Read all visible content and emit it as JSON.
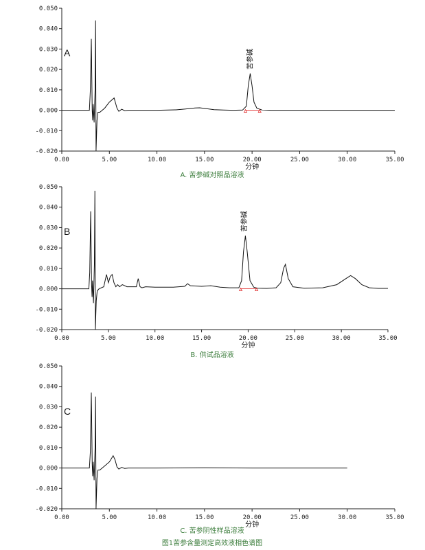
{
  "figure_title": "图1苦参含量测定高效液相色谱图",
  "chart_data": [
    {
      "type": "line",
      "panel": "A",
      "caption": "A.  苦参碱对照品溶液",
      "xlabel": "分钟",
      "ylabel": "",
      "xlim": [
        0,
        35
      ],
      "ylim": [
        -0.02,
        0.05
      ],
      "x_ticks": [
        "0.00",
        "5.00",
        "10.00",
        "15.00",
        "20.00",
        "25.00",
        "30.00",
        "35.00"
      ],
      "y_ticks": [
        "0.050",
        "0.040",
        "0.030",
        "0.020",
        "0.010",
        "0.000",
        "-0.010",
        "-0.020"
      ],
      "peak_label": {
        "text": "苦参碱",
        "x": 19.8,
        "y": 0.018
      },
      "integration_marks": [
        19.3,
        20.8
      ],
      "series": [
        {
          "x": [
            0,
            2.9,
            3.0,
            3.1,
            3.2,
            3.25,
            3.3,
            3.4,
            3.5,
            3.55,
            3.6,
            3.7,
            3.8,
            4.0,
            4.5,
            5.0,
            5.5,
            5.8,
            6.0,
            6.3,
            6.6,
            7.0,
            10,
            12,
            13,
            14,
            14.5,
            15,
            16,
            17,
            18,
            19,
            19.4,
            19.6,
            19.8,
            20.0,
            20.2,
            20.5,
            21,
            22,
            25,
            30,
            35
          ],
          "y": [
            0,
            0,
            0.01,
            0.035,
            0.0,
            -0.005,
            0.003,
            -0.006,
            0.01,
            0.044,
            -0.02,
            -0.005,
            -0.001,
            -0.001,
            0.001,
            0.004,
            0.006,
            0.001,
            -0.0005,
            0.0005,
            -0.0002,
            0,
            0,
            0.0002,
            0.0006,
            0.0011,
            0.0012,
            0.0009,
            0.0003,
            0.0001,
            0,
            0.0001,
            0.002,
            0.012,
            0.018,
            0.012,
            0.004,
            0.001,
            0.0002,
            0,
            0,
            0,
            0
          ]
        }
      ]
    },
    {
      "type": "line",
      "panel": "B",
      "caption": "B.  供试品溶液",
      "xlabel": "分钟",
      "ylabel": "",
      "xlim": [
        0,
        35
      ],
      "ylim": [
        -0.02,
        0.05
      ],
      "x_ticks": [
        "0.00",
        "5.00",
        "10.00",
        "15.00",
        "20.00",
        "25.00",
        "30.00",
        "35.00"
      ],
      "y_ticks": [
        "0.050",
        "0.040",
        "0.030",
        "0.020",
        "0.010",
        "0.000",
        "-0.010",
        "-0.020"
      ],
      "peak_label": {
        "text": "苦参碱",
        "x": 19.6,
        "y": 0.026
      },
      "integration_marks": [
        19.2,
        20.9
      ],
      "series": [
        {
          "x": [
            0,
            2.9,
            3.0,
            3.1,
            3.2,
            3.25,
            3.3,
            3.4,
            3.5,
            3.55,
            3.6,
            3.7,
            3.8,
            4.0,
            4.5,
            4.8,
            5.0,
            5.2,
            5.4,
            5.6,
            5.8,
            6.0,
            6.2,
            6.5,
            7.0,
            8.0,
            8.2,
            8.4,
            8.6,
            9.0,
            10,
            12,
            13.2,
            13.5,
            13.8,
            15,
            16,
            17,
            18,
            19,
            19.3,
            19.5,
            19.7,
            19.9,
            20.2,
            20.6,
            21,
            22,
            23,
            23.5,
            23.8,
            24.0,
            24.3,
            24.8,
            26,
            28,
            29.5,
            30.5,
            31.0,
            31.5,
            32.2,
            33,
            34,
            35
          ],
          "y": [
            0,
            0,
            0.008,
            0.038,
            0.002,
            -0.004,
            0.004,
            -0.007,
            0.012,
            0.048,
            -0.02,
            -0.006,
            -0.001,
            0.0,
            0.001,
            0.007,
            0.003,
            0.006,
            0.007,
            0.003,
            0.001,
            0.002,
            0.001,
            0.002,
            0.001,
            0.001,
            0.005,
            0.001,
            0.0005,
            0.001,
            0.0008,
            0.0008,
            0.0012,
            0.0025,
            0.0015,
            0.0012,
            0.0015,
            0.0008,
            0.0005,
            0.0005,
            0.004,
            0.018,
            0.026,
            0.018,
            0.004,
            0.0008,
            0.0003,
            0.0002,
            0.0005,
            0.003,
            0.01,
            0.012,
            0.005,
            0.001,
            0.0003,
            0.0005,
            0.002,
            0.005,
            0.0065,
            0.005,
            0.002,
            0.0005,
            0.0002,
            0.0002
          ]
        }
      ]
    },
    {
      "type": "line",
      "panel": "C",
      "caption": "C.  苦参阴性样品溶液",
      "xlabel": "分钟",
      "ylabel": "",
      "xlim": [
        0,
        35
      ],
      "ylim": [
        -0.02,
        0.05
      ],
      "x_ticks": [
        "0.00",
        "5.00",
        "10.00",
        "15.00",
        "20.00",
        "25.00",
        "30.00",
        "35.00"
      ],
      "y_ticks": [
        "0.050",
        "0.040",
        "0.030",
        "0.020",
        "0.010",
        "0.000",
        "-0.010",
        "-0.020"
      ],
      "peak_label": null,
      "integration_marks": [],
      "series": [
        {
          "x": [
            0,
            2.9,
            3.0,
            3.1,
            3.2,
            3.25,
            3.3,
            3.4,
            3.5,
            3.55,
            3.6,
            3.7,
            3.8,
            4.0,
            4.5,
            5.0,
            5.4,
            5.6,
            5.8,
            6.0,
            6.3,
            6.6,
            7.0,
            10,
            15,
            20,
            25,
            30
          ],
          "y": [
            0,
            0,
            0.008,
            0.037,
            0.002,
            -0.004,
            0.003,
            -0.006,
            0.01,
            0.035,
            -0.02,
            -0.005,
            -0.001,
            -0.001,
            0.001,
            0.003,
            0.006,
            0.004,
            0.0005,
            -0.0005,
            0.0003,
            -0.0002,
            0,
            0,
            0.0001,
            0,
            0,
            0
          ]
        }
      ]
    }
  ]
}
